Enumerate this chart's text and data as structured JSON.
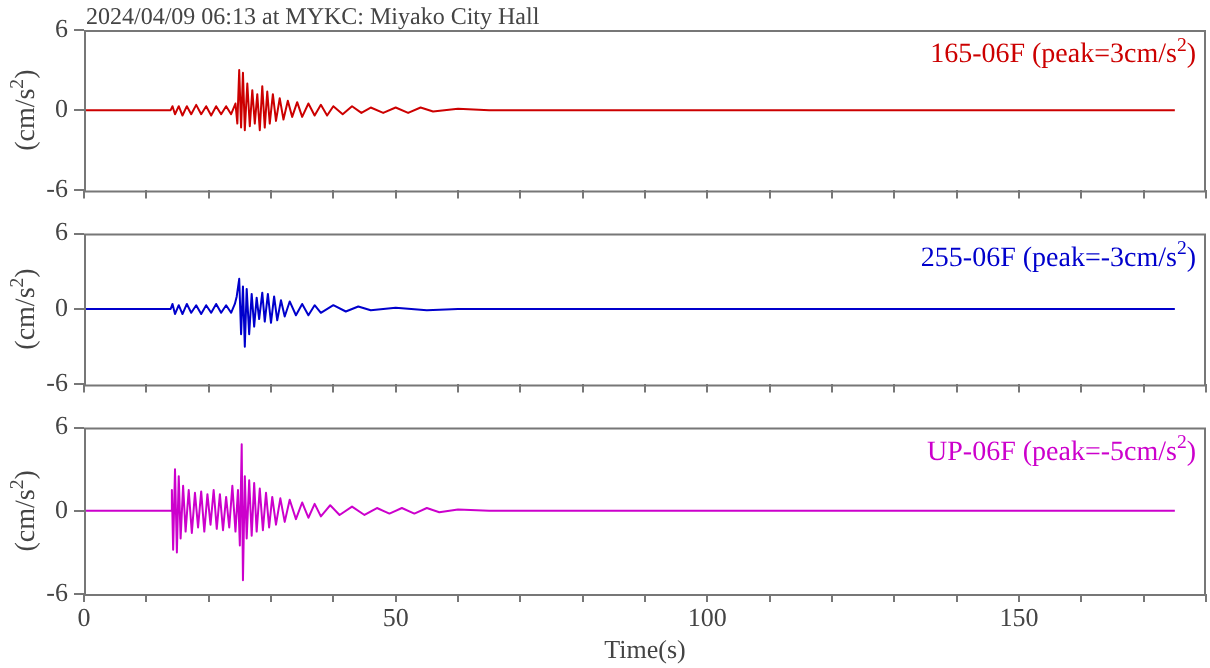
{
  "chart_data": [
    {
      "type": "line",
      "title": "2024/04/09 06:13 at MYKC: Miyako City Hall",
      "ylabel": "(cm/s$^{2}$)",
      "tick_labels": "y",
      "marker": "none",
      "xlim": [
        0,
        180
      ],
      "xticks": [
        0,
        {
          "value": 10,
          "label": null
        },
        {
          "value": 20,
          "label": null
        },
        {
          "value": 30,
          "label": null
        },
        {
          "value": 40,
          "label": null
        },
        50,
        {
          "value": 60,
          "label": null
        },
        {
          "value": 70,
          "label": null
        },
        {
          "value": 80,
          "label": null
        },
        {
          "value": 90,
          "label": null
        },
        100,
        {
          "value": 110,
          "label": null
        },
        {
          "value": 120,
          "label": null
        },
        {
          "value": 130,
          "label": null
        },
        {
          "value": 140,
          "label": null
        },
        150,
        {
          "value": 160,
          "label": null
        },
        {
          "value": 170,
          "label": null
        },
        {
          "value": 180,
          "label": null
        }
      ],
      "ylim": [
        -6,
        6
      ],
      "yticks": [
        -6,
        0,
        6
      ],
      "series": [
        {
          "name": "165-06F (peak=3cm/s$^{2}$)",
          "color": "#cc0000",
          "x": [
            0,
            5,
            10,
            13.9,
            14.2,
            14.6,
            15.2,
            15.8,
            16.5,
            17.2,
            18,
            18.8,
            19.6,
            20.4,
            21.2,
            22,
            22.8,
            23.6,
            24.3,
            24.6,
            24.9,
            25.2,
            25.5,
            25.8,
            26.2,
            26.6,
            27,
            27.4,
            27.8,
            28.2,
            28.6,
            29,
            29.4,
            29.8,
            30.3,
            30.8,
            31.4,
            32,
            32.7,
            33.4,
            34.2,
            35,
            36,
            37,
            38,
            39,
            40,
            41.5,
            43,
            44.5,
            46,
            48,
            50,
            52,
            54,
            56,
            60,
            65,
            70,
            80,
            90,
            100,
            120,
            140,
            160,
            175
          ],
          "values": [
            0,
            0,
            0,
            0,
            0.3,
            -0.3,
            0.3,
            -0.4,
            0.3,
            -0.3,
            0.4,
            -0.3,
            0.3,
            -0.4,
            0.3,
            -0.3,
            0.3,
            -0.3,
            0.5,
            -1,
            3,
            -1.3,
            2.8,
            -1.5,
            2,
            -1.2,
            1.5,
            -1,
            1.2,
            -1.5,
            1.8,
            -1.3,
            1.4,
            -1,
            1.2,
            -0.8,
            0.9,
            -0.7,
            0.7,
            -0.5,
            0.6,
            -0.5,
            0.5,
            -0.4,
            0.4,
            -0.4,
            0.3,
            -0.3,
            0.3,
            -0.2,
            0.2,
            -0.2,
            0.2,
            -0.2,
            0.2,
            -0.1,
            0.1,
            0,
            0,
            0,
            0,
            0,
            0,
            0,
            0,
            0
          ]
        }
      ]
    },
    {
      "type": "line",
      "ylabel": "(cm/s$^{2}$)",
      "tick_labels": "y",
      "marker": "none",
      "xlim": [
        0,
        180
      ],
      "xticks": [
        0,
        {
          "value": 10,
          "label": null
        },
        {
          "value": 20,
          "label": null
        },
        {
          "value": 30,
          "label": null
        },
        {
          "value": 40,
          "label": null
        },
        50,
        {
          "value": 60,
          "label": null
        },
        {
          "value": 70,
          "label": null
        },
        {
          "value": 80,
          "label": null
        },
        {
          "value": 90,
          "label": null
        },
        100,
        {
          "value": 110,
          "label": null
        },
        {
          "value": 120,
          "label": null
        },
        {
          "value": 130,
          "label": null
        },
        {
          "value": 140,
          "label": null
        },
        150,
        {
          "value": 160,
          "label": null
        },
        {
          "value": 170,
          "label": null
        },
        {
          "value": 180,
          "label": null
        }
      ],
      "ylim": [
        -6,
        6
      ],
      "yticks": [
        -6,
        0,
        6
      ],
      "series": [
        {
          "name": "255-06F (peak=-3cm/s$^{2}$)",
          "color": "#0000cc",
          "x": [
            0,
            5,
            10,
            13.9,
            14.2,
            14.6,
            15.2,
            15.8,
            16.5,
            17.2,
            18,
            18.8,
            19.6,
            20.4,
            21.2,
            22,
            22.8,
            23.6,
            24.2,
            24.5,
            24.9,
            25.2,
            25.5,
            25.8,
            26.1,
            26.5,
            26.9,
            27.3,
            27.7,
            28.1,
            28.6,
            29,
            29.5,
            30,
            30.5,
            31,
            31.6,
            32.2,
            33,
            34,
            35,
            36,
            37,
            38,
            40,
            42,
            44,
            46,
            50,
            55,
            60,
            70,
            80,
            90,
            100,
            120,
            140,
            160,
            175
          ],
          "values": [
            0,
            0,
            0,
            0,
            0.4,
            -0.4,
            0.3,
            -0.4,
            0.4,
            -0.3,
            0.3,
            -0.4,
            0.3,
            -0.3,
            0.4,
            -0.3,
            0.3,
            -0.3,
            0.4,
            1,
            2.4,
            -2,
            1.8,
            -3,
            1.6,
            -2,
            1.2,
            -1.4,
            0.9,
            -0.8,
            1.3,
            -1,
            1.2,
            -1.1,
            1,
            -0.9,
            0.7,
            -0.6,
            0.6,
            -0.5,
            0.4,
            -0.5,
            0.3,
            -0.3,
            0.3,
            -0.2,
            0.2,
            -0.1,
            0.1,
            -0.1,
            0,
            0,
            0,
            0,
            0,
            0,
            0,
            0,
            0
          ]
        }
      ]
    },
    {
      "type": "line",
      "ylabel": "(cm/s$^{2}$)",
      "xlabel": "Time(s)",
      "marker": "none",
      "xlim": [
        0,
        180
      ],
      "xticks": [
        0,
        {
          "value": 10,
          "label": null
        },
        {
          "value": 20,
          "label": null
        },
        {
          "value": 30,
          "label": null
        },
        {
          "value": 40,
          "label": null
        },
        50,
        {
          "value": 60,
          "label": null
        },
        {
          "value": 70,
          "label": null
        },
        {
          "value": 80,
          "label": null
        },
        {
          "value": 90,
          "label": null
        },
        100,
        {
          "value": 110,
          "label": null
        },
        {
          "value": 120,
          "label": null
        },
        {
          "value": 130,
          "label": null
        },
        {
          "value": 140,
          "label": null
        },
        150,
        {
          "value": 160,
          "label": null
        },
        {
          "value": 170,
          "label": null
        },
        {
          "value": 180,
          "label": null
        }
      ],
      "ylim": [
        -6,
        6
      ],
      "yticks": [
        -6,
        0,
        6
      ],
      "series": [
        {
          "name": "UP-06F (peak=-5cm/s$^{2}$)",
          "color": "#cc00cc",
          "x": [
            0,
            5,
            10,
            13.9,
            14.1,
            14.3,
            14.6,
            14.9,
            15.2,
            15.5,
            15.9,
            16.3,
            16.8,
            17.3,
            17.8,
            18.3,
            18.8,
            19.3,
            19.8,
            20.3,
            20.8,
            21.3,
            21.8,
            22.3,
            22.8,
            23.3,
            23.8,
            24.3,
            24.7,
            25,
            25.3,
            25.5,
            25.8,
            26.1,
            26.5,
            26.9,
            27.3,
            27.7,
            28.2,
            28.7,
            29.2,
            29.7,
            30.2,
            30.8,
            31.5,
            32.2,
            33,
            34,
            35,
            36,
            37,
            38,
            39.5,
            41,
            43,
            45,
            47,
            49,
            51,
            53,
            55,
            57,
            60,
            65,
            70,
            80,
            90,
            100,
            120,
            140,
            160,
            175
          ],
          "values": [
            0,
            0,
            0,
            0,
            1.5,
            -2.8,
            3,
            -3,
            2.5,
            -2,
            1.8,
            -1.5,
            1.5,
            -1.6,
            1.3,
            -1.2,
            1.4,
            -1.5,
            1.2,
            -1,
            1.5,
            -1.3,
            1.2,
            -1.4,
            1,
            -1.2,
            1.8,
            -1.5,
            1.5,
            -2.5,
            4.8,
            -5,
            2.5,
            -2,
            2.2,
            -1.8,
            2,
            -1.5,
            1.6,
            -1.4,
            1.3,
            -1.2,
            1,
            -1,
            0.9,
            -0.8,
            0.8,
            -0.6,
            0.6,
            -0.5,
            0.5,
            -0.4,
            0.4,
            -0.3,
            0.3,
            -0.3,
            0.2,
            -0.2,
            0.2,
            -0.2,
            0.2,
            -0.1,
            0.1,
            0,
            0,
            0,
            0,
            0,
            0,
            0,
            0,
            0
          ]
        }
      ]
    }
  ]
}
